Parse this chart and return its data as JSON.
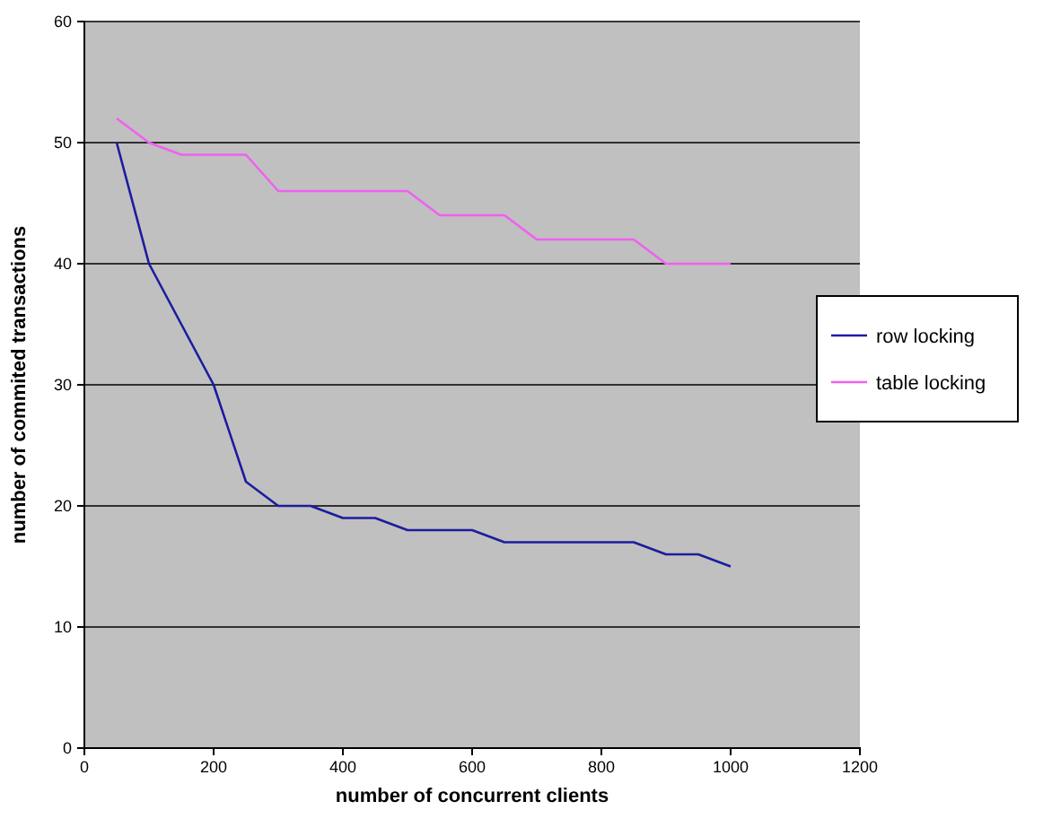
{
  "chart_data": {
    "type": "line",
    "xlabel": "number of concurrent clients",
    "ylabel": "number of commited transactions",
    "x": [
      50,
      100,
      150,
      200,
      250,
      300,
      350,
      400,
      450,
      500,
      550,
      600,
      650,
      700,
      750,
      800,
      850,
      900,
      950,
      1000
    ],
    "series": [
      {
        "name": "row locking",
        "color": "#1c1ca0",
        "values": [
          50,
          40,
          35,
          30,
          22,
          20,
          20,
          19,
          19,
          18,
          18,
          18,
          17,
          17,
          17,
          17,
          17,
          16,
          16,
          15
        ]
      },
      {
        "name": "table locking",
        "color": "#f060f0",
        "values": [
          52,
          50,
          49,
          49,
          49,
          46,
          46,
          46,
          46,
          46,
          44,
          44,
          44,
          42,
          42,
          42,
          42,
          40,
          40,
          40
        ]
      }
    ],
    "xlim": [
      0,
      1200
    ],
    "xticks": [
      0,
      200,
      400,
      600,
      800,
      1000,
      1200
    ],
    "ylim": [
      0,
      60
    ],
    "yticks": [
      0,
      10,
      20,
      30,
      40,
      50,
      60
    ],
    "grid": "y",
    "legend": "right",
    "marker": "none",
    "line_style": "solid"
  }
}
